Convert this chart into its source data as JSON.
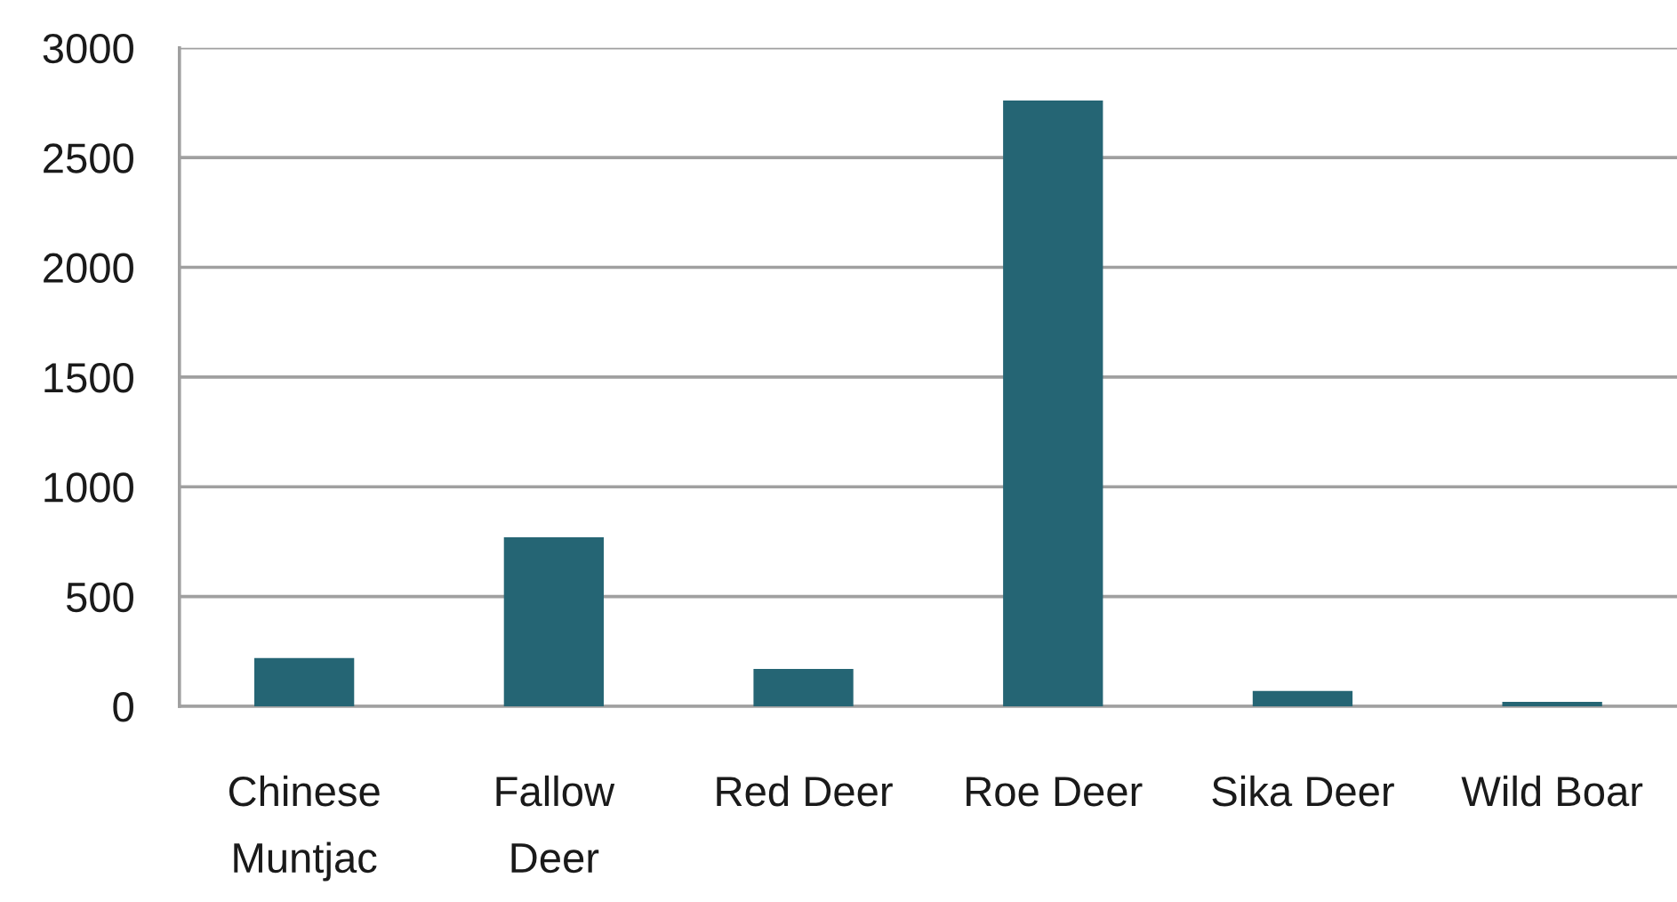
{
  "chart_data": {
    "type": "bar",
    "categories": [
      "Chinese\nMuntjac",
      "Fallow\nDeer",
      "Red Deer",
      "Roe Deer",
      "Sika Deer",
      "Wild Boar"
    ],
    "values": [
      220,
      770,
      170,
      2760,
      70,
      20
    ],
    "color": "#256574",
    "ylim": [
      0,
      3000
    ],
    "yticks": [
      0,
      500,
      1000,
      1500,
      2000,
      2500,
      3000
    ],
    "grid": "y",
    "legend": false
  }
}
